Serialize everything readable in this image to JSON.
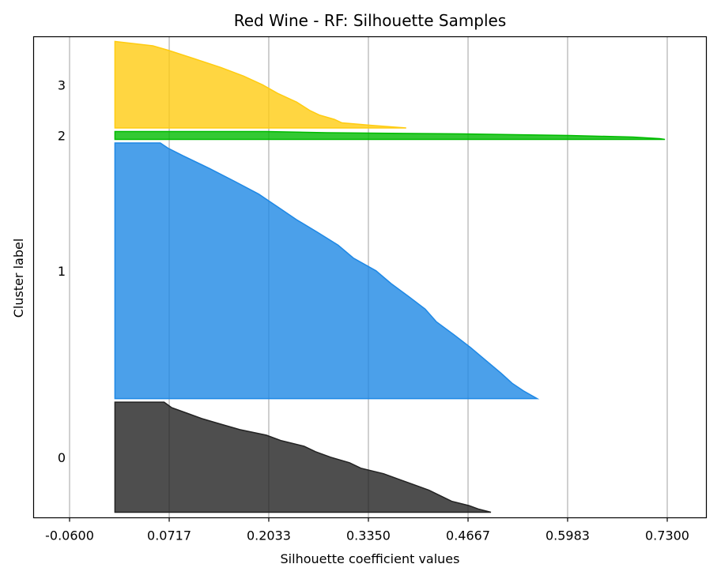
{
  "chart_data": {
    "type": "area",
    "title": "Red Wine - RF: Silhouette Samples",
    "xlabel": "Silhouette coefficient values",
    "ylabel": "Cluster label",
    "xlim": [
      -0.06,
      0.76
    ],
    "xticks": [
      "-0.0600",
      "0.0717",
      "0.2033",
      "0.3350",
      "0.4667",
      "0.5983",
      "0.7300"
    ],
    "xtick_values": [
      -0.06,
      0.0717,
      0.2033,
      0.335,
      0.4667,
      0.5983,
      0.73
    ],
    "grid": "vertical",
    "clusters": [
      {
        "label": "0",
        "color": "#222222",
        "size": 140,
        "profile": [
          [
            0.0,
            0.497
          ],
          [
            0.03,
            0.48
          ],
          [
            0.06,
            0.468
          ],
          [
            0.1,
            0.445
          ],
          [
            0.15,
            0.43
          ],
          [
            0.2,
            0.415
          ],
          [
            0.25,
            0.395
          ],
          [
            0.3,
            0.375
          ],
          [
            0.35,
            0.355
          ],
          [
            0.4,
            0.325
          ],
          [
            0.45,
            0.31
          ],
          [
            0.5,
            0.285
          ],
          [
            0.55,
            0.265
          ],
          [
            0.6,
            0.25
          ],
          [
            0.65,
            0.22
          ],
          [
            0.7,
            0.2
          ],
          [
            0.75,
            0.165
          ],
          [
            0.8,
            0.14
          ],
          [
            0.85,
            0.115
          ],
          [
            0.9,
            0.095
          ],
          [
            0.95,
            0.075
          ],
          [
            1.0,
            0.065
          ]
        ]
      },
      {
        "label": "1",
        "color": "#1e88e5",
        "size": 325,
        "profile": [
          [
            0.0,
            0.558
          ],
          [
            0.03,
            0.54
          ],
          [
            0.06,
            0.525
          ],
          [
            0.1,
            0.51
          ],
          [
            0.15,
            0.49
          ],
          [
            0.2,
            0.47
          ],
          [
            0.25,
            0.448
          ],
          [
            0.3,
            0.425
          ],
          [
            0.35,
            0.41
          ],
          [
            0.4,
            0.388
          ],
          [
            0.45,
            0.365
          ],
          [
            0.5,
            0.345
          ],
          [
            0.55,
            0.315
          ],
          [
            0.6,
            0.295
          ],
          [
            0.65,
            0.268
          ],
          [
            0.7,
            0.24
          ],
          [
            0.75,
            0.215
          ],
          [
            0.8,
            0.19
          ],
          [
            0.85,
            0.158
          ],
          [
            0.9,
            0.125
          ],
          [
            0.95,
            0.09
          ],
          [
            0.98,
            0.07
          ],
          [
            1.0,
            0.06
          ]
        ]
      },
      {
        "label": "2",
        "color": "#00bb00",
        "size": 10,
        "profile": [
          [
            0.0,
            0.727
          ],
          [
            0.1,
            0.72
          ],
          [
            0.3,
            0.685
          ],
          [
            0.5,
            0.6
          ],
          [
            0.7,
            0.46
          ],
          [
            0.85,
            0.28
          ],
          [
            1.0,
            0.2
          ]
        ]
      },
      {
        "label": "3",
        "color": "#ffcc11",
        "size": 110,
        "profile": [
          [
            0.0,
            0.385
          ],
          [
            0.03,
            0.34
          ],
          [
            0.06,
            0.3
          ],
          [
            0.1,
            0.29
          ],
          [
            0.15,
            0.27
          ],
          [
            0.2,
            0.258
          ],
          [
            0.3,
            0.24
          ],
          [
            0.4,
            0.215
          ],
          [
            0.5,
            0.195
          ],
          [
            0.6,
            0.17
          ],
          [
            0.7,
            0.14
          ],
          [
            0.8,
            0.105
          ],
          [
            0.9,
            0.07
          ],
          [
            0.95,
            0.05
          ],
          [
            1.0,
            0.0
          ]
        ]
      }
    ]
  }
}
